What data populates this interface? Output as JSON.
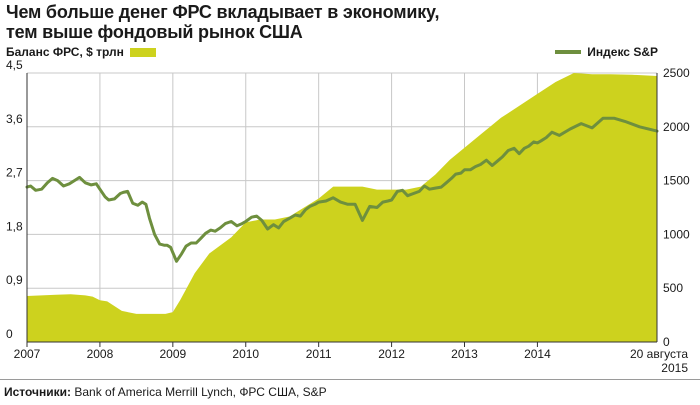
{
  "colors": {
    "balance_fill": "#cdd21e",
    "sp_line": "#6e8f3e",
    "grid": "#c8c8c8",
    "axis": "#333333"
  },
  "title_lines": [
    "Чем больше денег ФРС вкладывает в экономику,",
    "тем выше фондовый рынок США"
  ],
  "legend": {
    "left": "Баланс ФРС, $ трлн",
    "right": "Индекс S&P"
  },
  "source": {
    "label": "Источники:",
    "text": " Bank of America Merrill Lynch, ФРС США, S&P"
  },
  "chart_data": {
    "type": "area",
    "title": "Чем больше денег ФРС вкладывает в экономику, тем выше фондовый рынок США",
    "x_tick_labels": [
      "2007",
      "2008",
      "2009",
      "2010",
      "2011",
      "2012",
      "2013",
      "2014",
      "20 августа\n2015"
    ],
    "xlim": [
      2007.0,
      2015.64
    ],
    "y_left": {
      "label": "Баланс ФРС, $ трлн",
      "ticks": [
        "0",
        "0,9",
        "1,8",
        "2,7",
        "3,6",
        "4,5"
      ],
      "ylim": [
        0,
        4.5
      ]
    },
    "y_right": {
      "label": "Индекс S&P",
      "ticks": [
        "0",
        "500",
        "1000",
        "1500",
        "2000",
        "2500"
      ],
      "ylim": [
        0,
        2500
      ]
    },
    "grid": true,
    "series": [
      {
        "name": "Баланс ФРС, $ трлн",
        "type": "area",
        "axis": "left",
        "x": [
          2007.0,
          2007.2,
          2007.4,
          2007.6,
          2007.8,
          2007.9,
          2008.0,
          2008.1,
          2008.2,
          2008.3,
          2008.5,
          2008.7,
          2008.8,
          2008.9,
          2009.0,
          2009.1,
          2009.3,
          2009.5,
          2009.8,
          2010.0,
          2010.2,
          2010.4,
          2010.6,
          2010.8,
          2011.0,
          2011.2,
          2011.4,
          2011.6,
          2011.8,
          2012.0,
          2012.2,
          2012.4,
          2012.6,
          2012.8,
          2013.0,
          2013.25,
          2013.5,
          2013.75,
          2014.0,
          2014.25,
          2014.5,
          2014.75,
          2015.0,
          2015.3,
          2015.64
        ],
        "y": [
          0.77,
          0.78,
          0.79,
          0.8,
          0.78,
          0.76,
          0.7,
          0.68,
          0.6,
          0.52,
          0.47,
          0.47,
          0.47,
          0.47,
          0.5,
          0.7,
          1.15,
          1.48,
          1.75,
          2.0,
          2.05,
          2.05,
          2.1,
          2.25,
          2.4,
          2.6,
          2.6,
          2.6,
          2.55,
          2.55,
          2.55,
          2.6,
          2.8,
          3.05,
          3.25,
          3.5,
          3.75,
          3.95,
          4.15,
          4.35,
          4.5,
          4.48,
          4.48,
          4.47,
          4.45
        ]
      },
      {
        "name": "Индекс S&P",
        "type": "line",
        "axis": "right",
        "x": [
          2007.0,
          2007.05,
          2007.12,
          2007.2,
          2007.28,
          2007.35,
          2007.42,
          2007.5,
          2007.58,
          2007.65,
          2007.72,
          2007.8,
          2007.88,
          2007.95,
          2008.0,
          2008.07,
          2008.12,
          2008.2,
          2008.28,
          2008.32,
          2008.38,
          2008.45,
          2008.52,
          2008.58,
          2008.63,
          2008.68,
          2008.75,
          2008.82,
          2008.88,
          2008.92,
          2008.97,
          2009.05,
          2009.12,
          2009.18,
          2009.25,
          2009.32,
          2009.38,
          2009.45,
          2009.52,
          2009.58,
          2009.65,
          2009.72,
          2009.8,
          2009.88,
          2009.95,
          2010.0,
          2010.08,
          2010.15,
          2010.22,
          2010.3,
          2010.38,
          2010.45,
          2010.52,
          2010.6,
          2010.68,
          2010.75,
          2010.82,
          2010.88,
          2010.95,
          2011.0,
          2011.1,
          2011.2,
          2011.3,
          2011.4,
          2011.5,
          2011.6,
          2011.7,
          2011.8,
          2011.88,
          2011.95,
          2012.0,
          2012.08,
          2012.15,
          2012.22,
          2012.3,
          2012.38,
          2012.45,
          2012.52,
          2012.6,
          2012.68,
          2012.75,
          2012.82,
          2012.88,
          2012.95,
          2013.0,
          2013.08,
          2013.15,
          2013.22,
          2013.3,
          2013.38,
          2013.45,
          2013.52,
          2013.6,
          2013.68,
          2013.75,
          2013.82,
          2013.88,
          2013.95,
          2014.0,
          2014.05,
          2014.12,
          2014.2,
          2014.3,
          2014.45,
          2014.6,
          2014.75,
          2014.9,
          2015.05,
          2015.2,
          2015.4,
          2015.64
        ],
        "y": [
          1440,
          1450,
          1410,
          1420,
          1480,
          1520,
          1500,
          1450,
          1470,
          1500,
          1530,
          1480,
          1460,
          1470,
          1420,
          1350,
          1320,
          1330,
          1380,
          1390,
          1400,
          1290,
          1270,
          1300,
          1280,
          1150,
          1000,
          910,
          900,
          900,
          880,
          750,
          820,
          890,
          920,
          920,
          960,
          1010,
          1040,
          1030,
          1060,
          1100,
          1120,
          1080,
          1100,
          1120,
          1160,
          1170,
          1130,
          1050,
          1090,
          1060,
          1120,
          1150,
          1180,
          1170,
          1230,
          1260,
          1280,
          1300,
          1310,
          1340,
          1300,
          1280,
          1280,
          1130,
          1260,
          1250,
          1300,
          1310,
          1320,
          1400,
          1410,
          1360,
          1380,
          1400,
          1450,
          1420,
          1430,
          1440,
          1480,
          1520,
          1560,
          1570,
          1600,
          1600,
          1630,
          1650,
          1690,
          1640,
          1680,
          1720,
          1780,
          1800,
          1750,
          1800,
          1820,
          1860,
          1850,
          1870,
          1900,
          1950,
          1920,
          1980,
          2030,
          1990,
          2080,
          2080,
          2050,
          2000,
          1960
        ]
      }
    ]
  }
}
